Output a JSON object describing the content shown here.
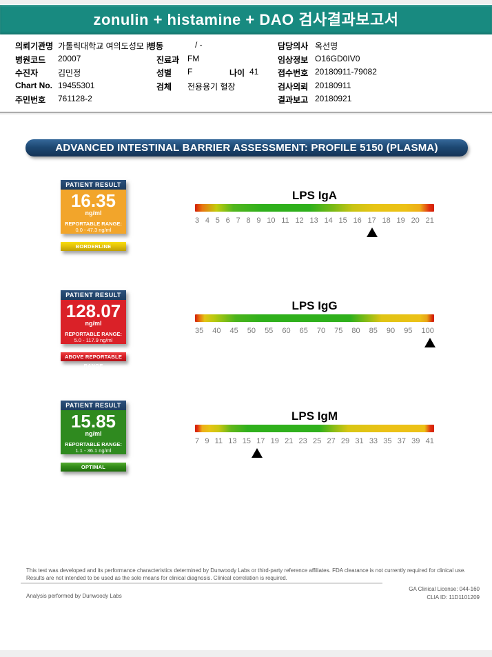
{
  "header": {
    "title": "zonulin + histamine + DAO 검사결과보고서"
  },
  "patient_info": {
    "fields": [
      {
        "label": "의뢰기관명",
        "value": "가톨릭대학교 여의도성모ㅑ"
      },
      {
        "label": "병동",
        "value": "/ -"
      },
      {
        "label": "담당의사",
        "value": "옥선명"
      },
      {
        "label": "병원코드",
        "value": "20007"
      },
      {
        "label": "진료과",
        "value": "FM"
      },
      {
        "label": "임상정보",
        "value": "O16GD0IV0"
      },
      {
        "label": "수진자",
        "value": "김민정"
      },
      {
        "label": "성별",
        "value": "F"
      },
      {
        "label": "나이",
        "value": "41"
      },
      {
        "label": "접수번호",
        "value": "20180911-79082"
      },
      {
        "label": "Chart No.",
        "value": "19455301"
      },
      {
        "label": "검체",
        "value": "전용용기 혈장"
      },
      {
        "label": "검사의뢰",
        "value": "20180911"
      },
      {
        "label": "주민번호",
        "value": "761128-2"
      },
      {
        "label": "결과보고",
        "value": "20180921"
      }
    ]
  },
  "banner": {
    "title": "ADVANCED INTESTINAL BARRIER ASSESSMENT: PROFILE 5150 (PLASMA)"
  },
  "results": [
    {
      "name": "LPS IgA",
      "patient_result_label": "PATIENT RESULT",
      "value": "16.35",
      "unit": "ng/ml",
      "range_label": "REPORTABLE RANGE:",
      "range": "0.0 - 47.3 ng/ml",
      "status": "BORDERLINE",
      "scale_ticks": [
        "3",
        "4",
        "5",
        "6",
        "7",
        "8",
        "9",
        "10",
        "11",
        "12",
        "13",
        "14",
        "15",
        "16",
        "17",
        "18",
        "19",
        "20",
        "21"
      ],
      "scale_min": 3,
      "scale_max": 21,
      "marker_pct": 74.2
    },
    {
      "name": "LPS IgG",
      "patient_result_label": "PATIENT RESULT",
      "value": "128.07",
      "unit": "ng/ml",
      "range_label": "REPORTABLE RANGE:",
      "range": "5.0 - 117.9 ng/ml",
      "status": "ABOVE REPORTABLE RANGE",
      "scale_ticks": [
        "35",
        "40",
        "45",
        "50",
        "55",
        "60",
        "65",
        "70",
        "75",
        "80",
        "85",
        "90",
        "95",
        "100"
      ],
      "scale_min": 35,
      "scale_max": 100,
      "marker_pct": 98.3
    },
    {
      "name": "LPS IgM",
      "patient_result_label": "PATIENT RESULT",
      "value": "15.85",
      "unit": "ng/ml",
      "range_label": "REPORTABLE RANGE:",
      "range": "1.1 - 36.1 ng/ml",
      "status": "OPTIMAL",
      "scale_ticks": [
        "7",
        "9",
        "11",
        "13",
        "15",
        "17",
        "19",
        "21",
        "23",
        "25",
        "27",
        "29",
        "31",
        "33",
        "35",
        "37",
        "39",
        "41"
      ],
      "scale_min": 7,
      "scale_max": 41,
      "marker_pct": 26.0
    }
  ],
  "footer": {
    "disclaimer_line1": "This test was developed and its performance characteristics determined by Dunwoody Labs or third-party reference affiliates. FDA clearance is not currently required for clinical use.",
    "disclaimer_line2": "Results are not intended to be used as the sole means for clinical diagnosis. Clinical correlation is required.",
    "license": "GA Clinical License: 044-160",
    "clia": "CLIA ID: 11D1101209",
    "analysis": "Analysis performed by Dunwoody Labs"
  },
  "colors": {
    "teal_header": "#188a80",
    "navy_header": "#1c3c60",
    "banner_navy": "#1d4973",
    "iga_box_amber": "#f2a52b",
    "igg_box_red": "#da2128",
    "igm_box_green": "#2f8a1f",
    "status_borderline_yellow": "#e3c20a",
    "status_above_red": "#d81f26",
    "status_optimal_green": "#328a18",
    "tick_gray": "#7a7a7a"
  }
}
